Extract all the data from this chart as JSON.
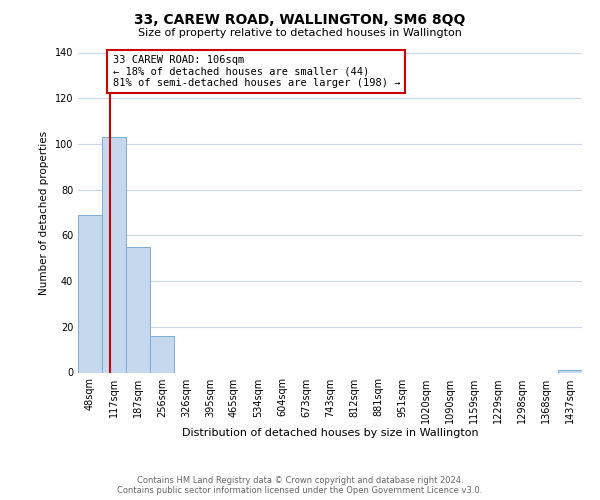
{
  "title": "33, CAREW ROAD, WALLINGTON, SM6 8QQ",
  "subtitle": "Size of property relative to detached houses in Wallington",
  "xlabel": "Distribution of detached houses by size in Wallington",
  "ylabel": "Number of detached properties",
  "categories": [
    "48sqm",
    "117sqm",
    "187sqm",
    "256sqm",
    "326sqm",
    "395sqm",
    "465sqm",
    "534sqm",
    "604sqm",
    "673sqm",
    "743sqm",
    "812sqm",
    "881sqm",
    "951sqm",
    "1020sqm",
    "1090sqm",
    "1159sqm",
    "1229sqm",
    "1298sqm",
    "1368sqm",
    "1437sqm"
  ],
  "values": [
    69,
    103,
    55,
    16,
    0,
    0,
    0,
    0,
    0,
    0,
    0,
    0,
    0,
    0,
    0,
    0,
    0,
    0,
    0,
    0,
    1
  ],
  "bar_color": "#c5d8ed",
  "bar_edgecolor": "#7aafd4",
  "ylim": [
    0,
    140
  ],
  "yticks": [
    0,
    20,
    40,
    60,
    80,
    100,
    120,
    140
  ],
  "property_line_color": "#cc0000",
  "annotation_title": "33 CAREW ROAD: 106sqm",
  "annotation_line1": "← 18% of detached houses are smaller (44)",
  "annotation_line2": "81% of semi-detached houses are larger (198) →",
  "annotation_box_color": "#ffffff",
  "annotation_box_edgecolor": "#cc0000",
  "footer_line1": "Contains HM Land Registry data © Crown copyright and database right 2024.",
  "footer_line2": "Contains public sector information licensed under the Open Government Licence v3.0.",
  "background_color": "#ffffff",
  "grid_color": "#c8d8e8"
}
